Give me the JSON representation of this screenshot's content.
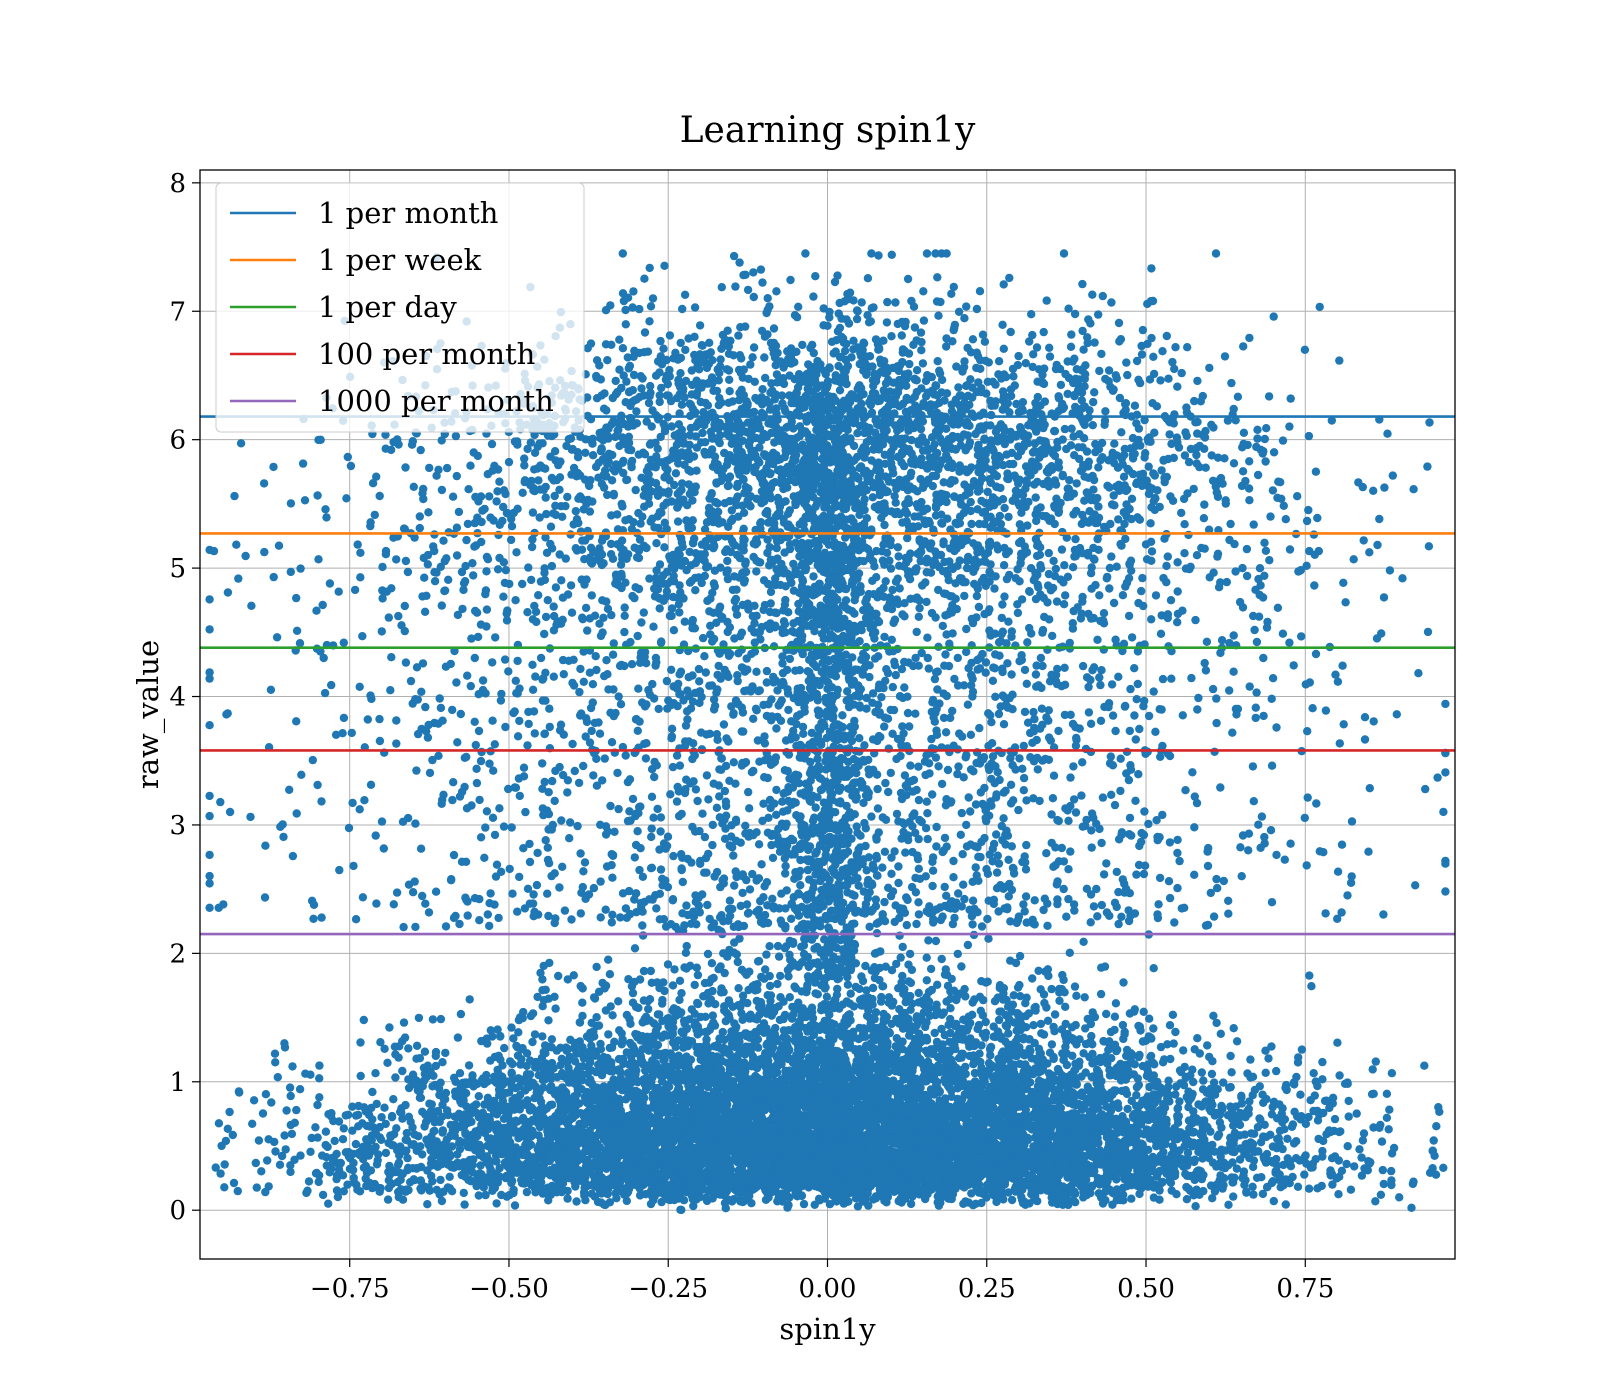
{
  "chart_data": {
    "type": "scatter",
    "title": "Learning spin1y",
    "xlabel": "spin1y",
    "ylabel": "raw_value",
    "xlim": [
      -0.985,
      0.985
    ],
    "ylim": [
      -0.38,
      8.1
    ],
    "xticks": [
      -0.75,
      -0.5,
      -0.25,
      0.0,
      0.25,
      0.5,
      0.75
    ],
    "xtick_labels": [
      "−0.75",
      "−0.50",
      "−0.25",
      "0.00",
      "0.25",
      "0.50",
      "0.75"
    ],
    "yticks": [
      0,
      1,
      2,
      3,
      4,
      5,
      6,
      7,
      8
    ],
    "ytick_labels": [
      "0",
      "1",
      "2",
      "3",
      "4",
      "5",
      "6",
      "7",
      "8"
    ],
    "grid": true,
    "legend_position": "top-left",
    "scatter_color": "#1f77b4",
    "scatter_description": "Dense cloud of raw_value between 0 and 2 concentrated near spin1y = 0, a sparser band between 4.5 and 7.3, and a narrow column near spin1y = 0 connecting them.",
    "series": [
      {
        "name": "1 per month",
        "color": "#1f77b4",
        "y": 6.18
      },
      {
        "name": "1 per week",
        "color": "#ff7f0e",
        "y": 5.27
      },
      {
        "name": "1 per day",
        "color": "#2ca02c",
        "y": 4.38
      },
      {
        "name": "100 per month",
        "color": "#d62728",
        "y": 3.58
      },
      {
        "name": "1000 per month",
        "color": "#9467bd",
        "y": 2.15
      }
    ]
  }
}
